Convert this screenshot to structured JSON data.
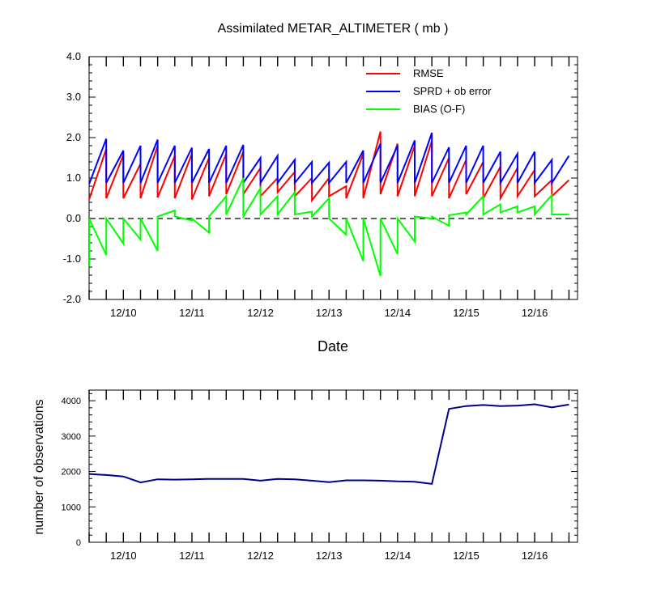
{
  "chart_data": [
    {
      "type": "line",
      "title": "Assimilated METAR_ALTIMETER ( mb )",
      "xlabel": "Date",
      "ylabel": "",
      "ylim": [
        -2.0,
        4.0
      ],
      "y_ticks": [
        -2.0,
        -1.0,
        0.0,
        1.0,
        2.0,
        3.0,
        4.0
      ],
      "y_tick_labels": [
        "-2.0",
        "-1.0",
        "0.0",
        "1.0",
        "2.0",
        "3.0",
        "4.0"
      ],
      "xlim": [
        9.5,
        16.625
      ],
      "x_ticks": [
        10,
        11,
        12,
        13,
        14,
        15,
        16
      ],
      "x_tick_labels": [
        "12/10",
        "12/11",
        "12/12",
        "12/13",
        "12/14",
        "12/15",
        "12/16"
      ],
      "zero_line": true,
      "legend_position": "top-right",
      "series": [
        {
          "name": "RMSE",
          "color": "#ff0000",
          "points": [
            [
              9.5,
              0.47
            ],
            [
              9.75,
              1.72
            ],
            [
              9.75,
              0.5
            ],
            [
              10.0,
              1.57
            ],
            [
              10.0,
              0.5
            ],
            [
              10.25,
              1.35
            ],
            [
              10.25,
              0.5
            ],
            [
              10.5,
              1.8
            ],
            [
              10.5,
              0.52
            ],
            [
              10.75,
              1.55
            ],
            [
              10.75,
              0.5
            ],
            [
              11.0,
              1.6
            ],
            [
              11.0,
              0.47
            ],
            [
              11.25,
              1.5
            ],
            [
              11.25,
              0.55
            ],
            [
              11.5,
              1.6
            ],
            [
              11.5,
              0.6
            ],
            [
              11.75,
              1.65
            ],
            [
              11.75,
              0.6
            ],
            [
              12.0,
              1.25
            ],
            [
              12.0,
              0.55
            ],
            [
              12.25,
              1.0
            ],
            [
              12.25,
              0.65
            ],
            [
              12.5,
              1.15
            ],
            [
              12.5,
              0.55
            ],
            [
              12.75,
              1.0
            ],
            [
              12.75,
              0.45
            ],
            [
              13.0,
              1.0
            ],
            [
              13.0,
              0.55
            ],
            [
              13.25,
              0.8
            ],
            [
              13.25,
              0.5
            ],
            [
              13.5,
              1.6
            ],
            [
              13.5,
              0.5
            ],
            [
              13.75,
              2.15
            ],
            [
              13.75,
              0.6
            ],
            [
              14.0,
              1.85
            ],
            [
              14.0,
              0.55
            ],
            [
              14.25,
              1.8
            ],
            [
              14.25,
              0.55
            ],
            [
              14.5,
              1.92
            ],
            [
              14.5,
              0.55
            ],
            [
              14.75,
              1.5
            ],
            [
              14.75,
              0.5
            ],
            [
              15.0,
              1.45
            ],
            [
              15.0,
              0.6
            ],
            [
              15.25,
              1.4
            ],
            [
              15.25,
              0.5
            ],
            [
              15.5,
              1.28
            ],
            [
              15.5,
              0.5
            ],
            [
              15.75,
              1.25
            ],
            [
              15.75,
              0.55
            ],
            [
              16.0,
              1.2
            ],
            [
              16.0,
              0.55
            ],
            [
              16.25,
              0.95
            ],
            [
              16.25,
              0.55
            ],
            [
              16.5,
              0.95
            ]
          ]
        },
        {
          "name": "SPRD + ob error",
          "color": "#0000ff",
          "points": [
            [
              9.5,
              0.85
            ],
            [
              9.75,
              1.97
            ],
            [
              9.75,
              0.88
            ],
            [
              10.0,
              1.68
            ],
            [
              10.0,
              0.88
            ],
            [
              10.25,
              1.8
            ],
            [
              10.25,
              0.88
            ],
            [
              10.5,
              1.95
            ],
            [
              10.5,
              0.88
            ],
            [
              10.75,
              1.8
            ],
            [
              10.75,
              0.88
            ],
            [
              11.0,
              1.75
            ],
            [
              11.0,
              0.88
            ],
            [
              11.25,
              1.72
            ],
            [
              11.25,
              0.88
            ],
            [
              11.5,
              1.8
            ],
            [
              11.5,
              0.88
            ],
            [
              11.75,
              1.82
            ],
            [
              11.75,
              0.88
            ],
            [
              12.0,
              1.5
            ],
            [
              12.0,
              0.88
            ],
            [
              12.25,
              1.55
            ],
            [
              12.25,
              0.88
            ],
            [
              12.5,
              1.45
            ],
            [
              12.5,
              0.88
            ],
            [
              12.75,
              1.4
            ],
            [
              12.75,
              0.88
            ],
            [
              13.0,
              1.38
            ],
            [
              13.0,
              0.88
            ],
            [
              13.25,
              1.4
            ],
            [
              13.25,
              0.88
            ],
            [
              13.5,
              1.68
            ],
            [
              13.5,
              0.88
            ],
            [
              13.75,
              1.85
            ],
            [
              13.75,
              0.88
            ],
            [
              14.0,
              1.8
            ],
            [
              14.0,
              0.88
            ],
            [
              14.25,
              1.93
            ],
            [
              14.25,
              0.88
            ],
            [
              14.5,
              2.12
            ],
            [
              14.5,
              0.88
            ],
            [
              14.75,
              1.76
            ],
            [
              14.75,
              0.88
            ],
            [
              15.0,
              1.8
            ],
            [
              15.0,
              0.88
            ],
            [
              15.25,
              1.8
            ],
            [
              15.25,
              0.88
            ],
            [
              15.5,
              1.65
            ],
            [
              15.5,
              0.88
            ],
            [
              15.75,
              1.6
            ],
            [
              15.75,
              0.88
            ],
            [
              16.0,
              1.65
            ],
            [
              16.0,
              0.88
            ],
            [
              16.25,
              1.45
            ],
            [
              16.25,
              0.88
            ],
            [
              16.5,
              1.55
            ]
          ]
        },
        {
          "name": "BIAS (O-F)",
          "color": "#00ff00",
          "points": [
            [
              9.5,
              -1.2
            ],
            [
              9.5,
              0.0
            ],
            [
              9.75,
              -0.9
            ],
            [
              9.75,
              0.0
            ],
            [
              10.0,
              -0.62
            ],
            [
              10.0,
              0.0
            ],
            [
              10.25,
              -0.52
            ],
            [
              10.25,
              0.0
            ],
            [
              10.5,
              -0.8
            ],
            [
              10.5,
              0.05
            ],
            [
              10.75,
              0.2
            ],
            [
              10.75,
              0.05
            ],
            [
              11.0,
              -0.05
            ],
            [
              11.0,
              0.0
            ],
            [
              11.25,
              -0.35
            ],
            [
              11.25,
              0.05
            ],
            [
              11.5,
              0.55
            ],
            [
              11.5,
              0.1
            ],
            [
              11.75,
              1.0
            ],
            [
              11.75,
              0.05
            ],
            [
              12.0,
              0.75
            ],
            [
              12.0,
              0.1
            ],
            [
              12.25,
              0.55
            ],
            [
              12.25,
              0.1
            ],
            [
              12.5,
              0.65
            ],
            [
              12.5,
              0.1
            ],
            [
              12.75,
              0.17
            ],
            [
              12.75,
              0.05
            ],
            [
              13.0,
              0.5
            ],
            [
              13.0,
              0.0
            ],
            [
              13.25,
              -0.4
            ],
            [
              13.25,
              0.0
            ],
            [
              13.5,
              -1.05
            ],
            [
              13.5,
              0.0
            ],
            [
              13.75,
              -1.42
            ],
            [
              13.75,
              0.0
            ],
            [
              14.0,
              -0.88
            ],
            [
              14.0,
              0.0
            ],
            [
              14.25,
              -0.57
            ],
            [
              14.25,
              0.05
            ],
            [
              14.5,
              0.0
            ],
            [
              14.5,
              0.05
            ],
            [
              14.75,
              -0.18
            ],
            [
              14.75,
              0.08
            ],
            [
              15.0,
              0.15
            ],
            [
              15.0,
              0.1
            ],
            [
              15.25,
              0.55
            ],
            [
              15.25,
              0.1
            ],
            [
              15.5,
              0.35
            ],
            [
              15.5,
              0.15
            ],
            [
              15.75,
              0.3
            ],
            [
              15.75,
              0.15
            ],
            [
              16.0,
              0.3
            ],
            [
              16.0,
              0.1
            ],
            [
              16.25,
              0.58
            ],
            [
              16.25,
              0.1
            ],
            [
              16.5,
              0.1
            ]
          ]
        }
      ]
    },
    {
      "type": "line",
      "title": "",
      "xlabel": "",
      "ylabel": "number of observations",
      "ylim": [
        0,
        4300
      ],
      "y_ticks": [
        0,
        1000,
        2000,
        3000,
        4000
      ],
      "y_tick_labels": [
        "0",
        "1000",
        "2000",
        "3000",
        "4000"
      ],
      "xlim": [
        9.5,
        16.625
      ],
      "x_ticks": [
        10,
        11,
        12,
        13,
        14,
        15,
        16
      ],
      "x_tick_labels": [
        "12/10",
        "12/11",
        "12/12",
        "12/13",
        "12/14",
        "12/15",
        "12/16"
      ],
      "series": [
        {
          "color": "#00008b",
          "points": [
            [
              9.5,
              1930
            ],
            [
              9.75,
              1900
            ],
            [
              10.0,
              1860
            ],
            [
              10.25,
              1690
            ],
            [
              10.5,
              1780
            ],
            [
              10.75,
              1770
            ],
            [
              11.0,
              1780
            ],
            [
              11.25,
              1790
            ],
            [
              11.5,
              1790
            ],
            [
              11.75,
              1790
            ],
            [
              12.0,
              1740
            ],
            [
              12.25,
              1790
            ],
            [
              12.5,
              1780
            ],
            [
              12.75,
              1740
            ],
            [
              13.0,
              1700
            ],
            [
              13.25,
              1750
            ],
            [
              13.5,
              1750
            ],
            [
              13.75,
              1740
            ],
            [
              14.0,
              1720
            ],
            [
              14.25,
              1710
            ],
            [
              14.5,
              1650
            ],
            [
              14.75,
              3770
            ],
            [
              15.0,
              3850
            ],
            [
              15.25,
              3880
            ],
            [
              15.5,
              3850
            ],
            [
              15.75,
              3860
            ],
            [
              16.0,
              3900
            ],
            [
              16.25,
              3810
            ],
            [
              16.5,
              3890
            ]
          ]
        }
      ]
    }
  ]
}
